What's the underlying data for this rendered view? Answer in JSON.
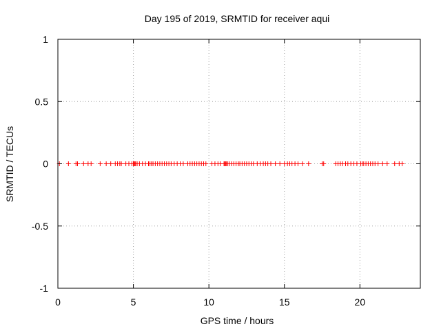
{
  "chart_data": {
    "type": "scatter",
    "title": "Day 195 of 2019, SRMTID for receiver aqui",
    "xlabel": "GPS time / hours",
    "ylabel": "SRMTID / TECUs",
    "xlim": [
      0,
      24
    ],
    "ylim": [
      -1,
      1
    ],
    "xticks": [
      0,
      5,
      10,
      15,
      20
    ],
    "yticks": [
      -1,
      -0.5,
      0,
      0.5,
      1
    ],
    "ytick_labels": [
      "-1",
      "-0.5",
      "0",
      "0.5",
      "1"
    ],
    "grid": true,
    "marker": "+",
    "series": [
      {
        "color": "#ff0000",
        "points": [
          [
            0.1,
            0
          ],
          [
            0.7,
            0
          ],
          [
            1.2,
            0
          ],
          [
            1.3,
            0
          ],
          [
            1.7,
            0
          ],
          [
            2.0,
            0
          ],
          [
            2.2,
            0
          ],
          [
            2.8,
            0
          ],
          [
            3.2,
            0
          ],
          [
            3.5,
            0
          ],
          [
            3.8,
            0
          ],
          [
            3.95,
            0
          ],
          [
            4.1,
            0
          ],
          [
            4.2,
            0
          ],
          [
            4.5,
            0
          ],
          [
            4.7,
            0
          ],
          [
            4.9,
            0
          ],
          [
            5.0,
            0
          ],
          [
            5.05,
            0
          ],
          [
            5.1,
            0
          ],
          [
            5.15,
            0
          ],
          [
            5.25,
            0
          ],
          [
            5.4,
            0
          ],
          [
            5.6,
            0
          ],
          [
            5.8,
            0
          ],
          [
            6.0,
            0
          ],
          [
            6.1,
            0
          ],
          [
            6.2,
            0
          ],
          [
            6.3,
            0
          ],
          [
            6.45,
            0
          ],
          [
            6.6,
            0
          ],
          [
            6.75,
            0
          ],
          [
            6.9,
            0
          ],
          [
            7.05,
            0
          ],
          [
            7.2,
            0
          ],
          [
            7.35,
            0
          ],
          [
            7.5,
            0
          ],
          [
            7.7,
            0
          ],
          [
            7.9,
            0
          ],
          [
            8.1,
            0
          ],
          [
            8.3,
            0
          ],
          [
            8.6,
            0
          ],
          [
            8.75,
            0
          ],
          [
            8.9,
            0
          ],
          [
            9.05,
            0
          ],
          [
            9.2,
            0
          ],
          [
            9.35,
            0
          ],
          [
            9.5,
            0
          ],
          [
            9.65,
            0
          ],
          [
            9.8,
            0
          ],
          [
            10.2,
            0
          ],
          [
            10.4,
            0
          ],
          [
            10.6,
            0
          ],
          [
            10.75,
            0
          ],
          [
            11.0,
            0
          ],
          [
            11.05,
            0
          ],
          [
            11.1,
            0
          ],
          [
            11.15,
            0
          ],
          [
            11.25,
            0
          ],
          [
            11.35,
            0
          ],
          [
            11.5,
            0
          ],
          [
            11.65,
            0
          ],
          [
            11.8,
            0
          ],
          [
            11.95,
            0
          ],
          [
            12.05,
            0
          ],
          [
            12.2,
            0
          ],
          [
            12.35,
            0
          ],
          [
            12.5,
            0
          ],
          [
            12.65,
            0
          ],
          [
            12.8,
            0
          ],
          [
            12.95,
            0
          ],
          [
            13.2,
            0
          ],
          [
            13.4,
            0
          ],
          [
            13.6,
            0
          ],
          [
            13.75,
            0
          ],
          [
            13.9,
            0
          ],
          [
            14.1,
            0
          ],
          [
            14.4,
            0
          ],
          [
            14.7,
            0
          ],
          [
            15.0,
            0
          ],
          [
            15.2,
            0
          ],
          [
            15.35,
            0
          ],
          [
            15.5,
            0
          ],
          [
            15.7,
            0
          ],
          [
            15.9,
            0
          ],
          [
            16.2,
            0
          ],
          [
            16.6,
            0
          ],
          [
            17.5,
            0
          ],
          [
            17.6,
            0
          ],
          [
            18.4,
            0
          ],
          [
            18.55,
            0
          ],
          [
            18.7,
            0
          ],
          [
            18.85,
            0
          ],
          [
            19.05,
            0
          ],
          [
            19.2,
            0
          ],
          [
            19.4,
            0
          ],
          [
            19.6,
            0
          ],
          [
            19.8,
            0
          ],
          [
            20.05,
            0
          ],
          [
            20.15,
            0
          ],
          [
            20.25,
            0
          ],
          [
            20.4,
            0
          ],
          [
            20.55,
            0
          ],
          [
            20.7,
            0
          ],
          [
            20.85,
            0
          ],
          [
            21.0,
            0
          ],
          [
            21.2,
            0
          ],
          [
            21.5,
            0
          ],
          [
            21.8,
            0
          ],
          [
            22.3,
            0
          ],
          [
            22.6,
            0
          ],
          [
            22.8,
            0
          ]
        ]
      }
    ]
  }
}
